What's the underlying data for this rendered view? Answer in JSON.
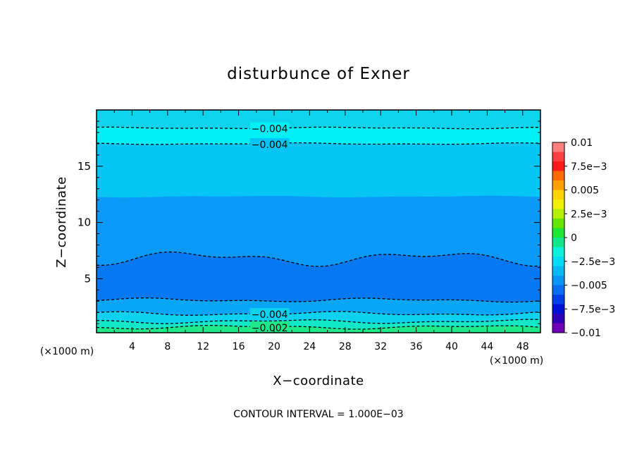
{
  "chart_data": {
    "type": "contour",
    "title": "disturbunce of Exner",
    "xlabel": "X−coordinate",
    "ylabel": "Z−coordinate",
    "x_unit_left": "(×1000 m)",
    "x_unit_right": "(×1000 m)",
    "xlim": [
      0,
      50
    ],
    "ylim": [
      0.2,
      20.0
    ],
    "x_ticks": [
      "4",
      "8",
      "12",
      "16",
      "20",
      "24",
      "28",
      "32",
      "36",
      "40",
      "44",
      "48"
    ],
    "y_ticks": [
      "5",
      "10",
      "15"
    ],
    "grid": false,
    "footer": "CONTOUR INTERVAL = 1.000E−03",
    "bands": [
      {
        "color": "#0dd3ec",
        "z_low": 18.4,
        "z_high": 20.0
      },
      {
        "color": "#00f0f5",
        "z_low": 17.0,
        "z_high": 18.4
      },
      {
        "color": "#06c4f4",
        "z_low": 12.3,
        "z_high": 17.0
      },
      {
        "color": "#0a99f7",
        "z_low": 6.8,
        "z_high": 12.3
      },
      {
        "color": "#0678f2",
        "z_low": 3.1,
        "z_high": 6.8
      },
      {
        "color": "#09a5f6",
        "z_low": 1.9,
        "z_high": 3.1
      },
      {
        "color": "#0cd1ef",
        "z_low": 1.2,
        "z_high": 1.9
      },
      {
        "color": "#12e8c8",
        "z_low": 0.7,
        "z_high": 1.2
      },
      {
        "color": "#1ee88a",
        "z_low": 0.2,
        "z_high": 0.7
      }
    ],
    "contours": [
      {
        "z": 18.4,
        "label": "−0.004",
        "label_x": 19.5
      },
      {
        "z": 17.0,
        "label": "−0.004",
        "label_x": 19.5
      },
      {
        "z": 6.8,
        "label": "",
        "label_x": null
      },
      {
        "z": 3.1,
        "label": "",
        "label_x": null
      },
      {
        "z": 1.9,
        "label": "−0.004",
        "label_x": 19.5
      },
      {
        "z": 1.2,
        "label": "",
        "label_x": null
      },
      {
        "z": 0.7,
        "label": "−0.002",
        "label_x": 19.5
      }
    ],
    "colorbar": {
      "tick_labels": [
        "0.01",
        "7.5e−3",
        "0.005",
        "2.5e−3",
        "0",
        "−2.5e−3",
        "−0.005",
        "−7.5e−3",
        "−0.01"
      ],
      "colors": [
        "#ff7f7f",
        "#ff4040",
        "#ff1a1a",
        "#ff6a00",
        "#ffa000",
        "#ffd200",
        "#f0f000",
        "#b4f000",
        "#64e600",
        "#1ee632",
        "#14e68c",
        "#0ff0dc",
        "#00dcf5",
        "#06b9f4",
        "#0a96f7",
        "#0a6ef0",
        "#0040e6",
        "#0010d2",
        "#3000b4",
        "#7000b8"
      ]
    }
  }
}
